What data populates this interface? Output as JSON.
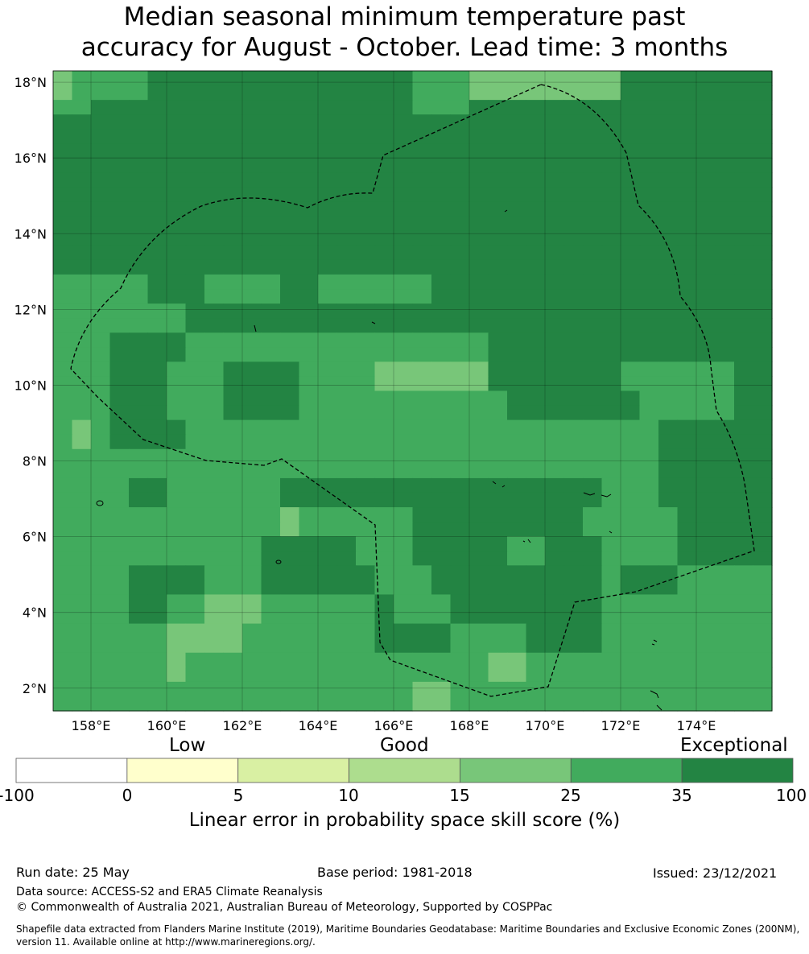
{
  "title_line1": "Median seasonal minimum temperature past",
  "title_line2": "accuracy for August - October. Lead time: 3 months",
  "map": {
    "lon_range": [
      157,
      176
    ],
    "lat_range": [
      1.4,
      18.3
    ],
    "lon_ticks": [
      "158°E",
      "160°E",
      "162°E",
      "164°E",
      "166°E",
      "168°E",
      "170°E",
      "172°E",
      "174°E"
    ],
    "lat_ticks": [
      "18°N",
      "16°N",
      "14°N",
      "12°N",
      "10°N",
      "8°N",
      "6°N",
      "4°N",
      "2°N"
    ],
    "grid": "on",
    "boundary": "dashed EEZ outline (Marshall Islands)"
  },
  "colorbar": {
    "level_labels": [
      "Low",
      "Good",
      "Exceptional"
    ],
    "tick_labels": [
      "-100",
      "0",
      "5",
      "10",
      "15",
      "25",
      "35",
      "100"
    ],
    "colors": [
      "#ffffff",
      "#ffffcc",
      "#d9f0a3",
      "#addd8e",
      "#78c679",
      "#41ab5d",
      "#238443"
    ],
    "label": "Linear error in probability space skill score (%)"
  },
  "footer": {
    "run_date": "Run date: 25 May",
    "base_period": "Base period: 1981-2018",
    "issued": "Issued: 23/12/2021",
    "data_source": "Data source: ACCESS-S2 and ERA5 Climate Reanalysis",
    "copyright": "© Commonwealth of Australia 2021, Australian Bureau of Meteorology, Supported by COSPPac",
    "shapefile_note": "Shapefile data extracted from Flanders Marine Institute (2019), Maritime Boundaries Geodatabase: Maritime Boundaries and Exclusive Economic Zones (200NM), version 11. Available online at http://www.marineregions.org/."
  },
  "skill_grid_rows": [
    "CMMMMDDDDDDDDDDDDDDMMMCCCCCCCCDDDDDDDD",
    "CMMMMDDDDDDDDDDDDDDMMMCCCCCCCCDDDDDDDD",
    "MMDDDDDDDDDDDDDDDDDMMMDDDDDDDDDDDDDDDD",
    "DDDDDDDDDDDDDDDDDDDDDDDDDDDDDDDDDDDDDD",
    "DDDDDDDDDDDDDDDDDDDDDDDDDDDDDDDDDDDDDD",
    "DDDDDDDDDDDDDDDDDDDDDDDDDDDDDDDDDDDDDD",
    "DDDDDDDDDDDDDDDDDDDDDDDDDDDDDDDDDDDDDD",
    "DDDDDDDDDDDDDDDDDDDDDDDDDDDDDDDDDDDDDD",
    "DDDDDDDDDDDDDDDDDDDDDDDDDDDDDDDDDDDDDD",
    "DDDDDDDDDDDDDDDDDDDDDDDDDDDDDDDDDDDDDD",
    "DDDDDDDDDDDDDDDDDDDDDDDDDDDDDDDDDDDDDD",
    "DDDDDDDDDDDDDDDDDDDDDDDDDDDDDDDDDDDDDD",
    "DDDDDDDDDDDDDDDDDDDDDDDDDDDDDDDDDDDDDD",
    "DDDDDDDDDDDDDDDDDDDDDDDDDDDDDDDDDDDDDD",
    "MMMMMDDDMMMMDDMMMMMMDDDDDDDDDDDDDDDDDD",
    "MMMMMDDDMMMMDDMMMMMMDDDDDDDDDDDDDDDDDD",
    "MMMMMMMDDDDDDDDDDDDDDDDDDDDDDDDDDDDDDD",
    "MMMMMMMDDDDDDDDDDDDDDDDDDDDDDDDDDDDDDD",
    "MMMDDDDMMMMMMMMMMMMMMMMDDDDDDDDDDDDDDD",
    "MMMDDDDMMMMMMMMMMMMMMMMDDDDDDDDDDDDDDD",
    "MMMDDDMMMDDDDMMMMCCCCCCDDDDDDDMMMMMMDD",
    "MMMDDDMMMDDDDMMMMCCCCCCDDDDDDDMMMMMMDD",
    "MMMDDDMMMDDDDMMMMMMMMMMMDDDDDDDMMMMMDD",
    "MMMDDDMMMDDDDMMMMMMMMMMMDDDDDDDMMMMMDD",
    "MCMDDDDMMMMMMMMMMMMMMMMMMMMMMMMMDDDDDD",
    "MCMDDDDMMMMMMMMMMMMMMMMMMMMMMMMMDDDDDD",
    "MMMMMMMMMMMMMMMMMMMMMMMMMMMMMMMMDDDDDD",
    "MMMMMMMMMMMMMMMMMMMMMMMMMMMMMMMMDDDDDD",
    "MMMMDDMMMMMMDDDDDDDDDDDDDDDDDMMMDDDDDD",
    "MMMMDDMMMMMMDDDDDDDDDDDDDDDDDMMMDDDDDD",
    "MMMMMMMMMMMMCMMMMMMDDDDDDDDDMMMMMDDDDD",
    "MMMMMMMMMMMMCMMMMMMDDDDDDDDDMMMMMDDDDD",
    "MMMMMMMMMMMDDDDDMMMDDDDDMMDDDMMMMDDDDD",
    "MMMMMMMMMMMDDDDDMMMDDDDDMMDDDMMMMDDDDD",
    "MMMMDDDDMMMDDDDDDMMMDDDDDDDDDMDDDMMMMM",
    "MMMMDDDDMMMDDDDDDMMMDDDDDDDDDMDDDMMMMM",
    "MMMMDDMMCCCMMMMMMDMMMDDDDDDDDMMMMMMMMM",
    "MMMMDDMMCCCMMMMMMDMMMDDDDDDDDMMMMMMMMM",
    "MMMMMMCCCCMMMMMMMDDDDMMMMDDDDMMMMMMMMM",
    "MMMMMMCCCCMMMMMMMDDDDMMMMDDDDMMMMMMMMM",
    "MMMMMMCMMMMMMMMMMMMMMMMCCMMMMMMMMMMMMM",
    "MMMMMMCMMMMMMMMMMMMMMMMCCMMMMMMMMMMMMM",
    "MMMMMMMMMMMMMMMMMMMCCMMMMMMMMMMMMMMMMM",
    "MMMMMMMMMMMMMMMMMMMCCMMMMMMMMMMMMMMMMM"
  ]
}
